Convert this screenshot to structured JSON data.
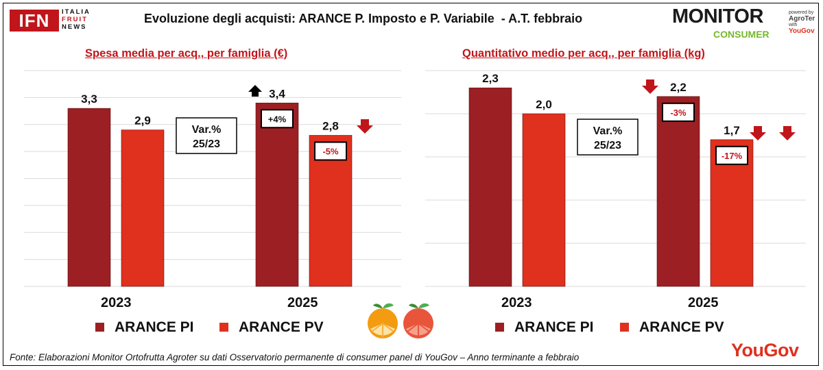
{
  "header": {
    "title": "Evoluzione degli acquisti: ARANCE P. Imposto e P. Variabile  - A.T. febbraio",
    "ifn_logo": {
      "main": "IFN",
      "line1": "ITALIA",
      "line2": "FRUIT",
      "line3": "NEWS"
    },
    "monitor_logo": {
      "main": "MONITOR",
      "sub": "CONSUMER",
      "powered": "powered by",
      "agroter": "AgroTer",
      "with": "with",
      "yougov": "YouGov"
    }
  },
  "colors": {
    "pi": "#9c1f23",
    "pv": "#e0301e",
    "title_red": "#c0151a",
    "arrow_up": "#000000",
    "arrow_down": "#c0151a"
  },
  "chart_data": [
    {
      "type": "bar",
      "title": "Spesa media per acq., per famiglia (€)",
      "categories": [
        "2023",
        "2025"
      ],
      "series": [
        {
          "name": "ARANCE PI",
          "values": [
            3.3,
            3.4
          ],
          "labels": [
            "3,3",
            "3,4"
          ]
        },
        {
          "name": "ARANCE PV",
          "values": [
            2.9,
            2.8
          ],
          "labels": [
            "2,9",
            "2,8"
          ]
        }
      ],
      "variations": {
        "ARANCE PI": "+4%",
        "ARANCE PV": "-5%"
      },
      "variation_trend": {
        "ARANCE PI": "up",
        "ARANCE PV": "down"
      },
      "var_box_label": [
        "Var.%",
        "25/23"
      ],
      "ylim": [
        0,
        4.0
      ],
      "grid": true,
      "legend": "bottom"
    },
    {
      "type": "bar",
      "title": "Quantitativo medio per acq., per famiglia (kg)",
      "categories": [
        "2023",
        "2025"
      ],
      "series": [
        {
          "name": "ARANCE PI",
          "values": [
            2.3,
            2.2
          ],
          "labels": [
            "2,3",
            "2,2"
          ]
        },
        {
          "name": "ARANCE PV",
          "values": [
            2.0,
            1.7
          ],
          "labels": [
            "2,0",
            "1,7"
          ]
        }
      ],
      "variations": {
        "ARANCE PI": "-3%",
        "ARANCE PV": "-17%"
      },
      "variation_trend": {
        "ARANCE PI": "down",
        "ARANCE PV": "down"
      },
      "var_box_label": [
        "Var.%",
        "25/23"
      ],
      "ylim": [
        0,
        2.5
      ],
      "grid": true,
      "legend": "bottom"
    }
  ],
  "legend": {
    "pi": "ARANCE PI",
    "pv": "ARANCE PV"
  },
  "footer": {
    "source": "Fonte: Elaborazioni Monitor Ortofrutta Agroter su dati Osservatorio permanente di consumer panel di YouGov  – Anno terminante a febbraio",
    "yougov": "YouGov"
  }
}
